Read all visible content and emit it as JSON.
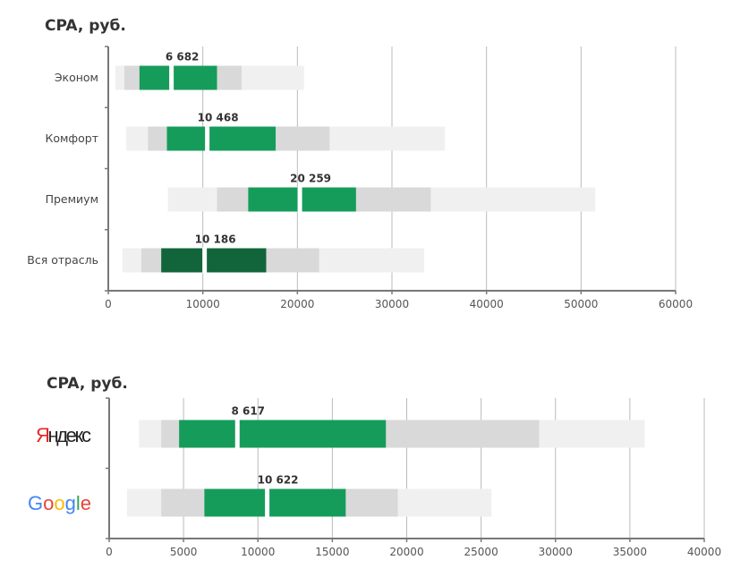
{
  "chart_data": [
    {
      "type": "bar",
      "subtype": "range-bar (box)",
      "title": "CPA, руб.",
      "xlim": [
        0,
        60000
      ],
      "xticks": [
        0,
        10000,
        20000,
        30000,
        40000,
        50000,
        60000
      ],
      "grid": true,
      "categories": [
        "Эконом",
        "Комфорт",
        "Премиум",
        "Вся отрасль"
      ],
      "series": [
        {
          "name": "outer",
          "values": [
            [
              760,
              20700
            ],
            [
              1900,
              35600
            ],
            [
              6300,
              51500
            ],
            [
              1500,
              33400
            ]
          ]
        },
        {
          "name": "middle",
          "values": [
            [
              1700,
              14100
            ],
            [
              4200,
              23400
            ],
            [
              11500,
              34100
            ],
            [
              3500,
              22300
            ]
          ]
        },
        {
          "name": "inner",
          "values": [
            [
              3300,
              11500
            ],
            [
              6200,
              17700
            ],
            [
              14800,
              26200
            ],
            [
              5600,
              16700
            ]
          ]
        },
        {
          "name": "median",
          "values": [
            6682,
            10468,
            20259,
            10186
          ],
          "labels": [
            "6 682",
            "10 468",
            "20 259",
            "10 186"
          ]
        }
      ],
      "highlight_category": "Вся отрасль"
    },
    {
      "type": "bar",
      "subtype": "range-bar (box)",
      "title": "CPA, руб.",
      "xlim": [
        0,
        40000
      ],
      "xticks": [
        0,
        5000,
        10000,
        15000,
        20000,
        25000,
        30000,
        35000,
        40000
      ],
      "grid": true,
      "categories": [
        "Яндекс",
        "Google"
      ],
      "series": [
        {
          "name": "outer",
          "values": [
            [
              2000,
              36000
            ],
            [
              1200,
              25700
            ]
          ]
        },
        {
          "name": "middle",
          "values": [
            [
              3500,
              28900
            ],
            [
              3500,
              19400
            ]
          ]
        },
        {
          "name": "inner",
          "values": [
            [
              4700,
              18600
            ],
            [
              6400,
              15900
            ]
          ]
        },
        {
          "name": "median",
          "values": [
            8617,
            10622
          ],
          "labels": [
            "8 617",
            "10 622"
          ]
        }
      ]
    }
  ],
  "colors": {
    "outer": "#f0f0f0",
    "middle": "#d9d9d9",
    "inner": "#169c5a",
    "inner_highlight": "#12653a",
    "grid": "#bbbbbb",
    "axis": "#777777"
  }
}
